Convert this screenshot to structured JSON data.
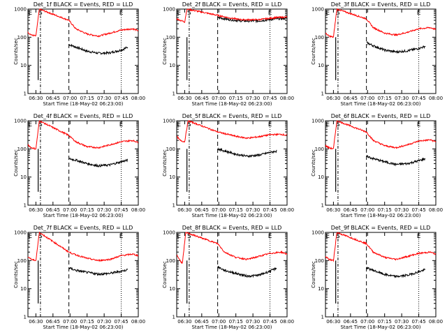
{
  "figure": {
    "x_tick_labels": [
      "06:30",
      "06:45",
      "07:00",
      "07:15",
      "07:30",
      "07:45",
      "08:00"
    ],
    "y_tick_labels": [
      "1",
      "10",
      "100",
      "1000"
    ],
    "ylabel": "Counts/sec",
    "xlabel": "Start Time (18-May-02 06:23:00)",
    "marker_labels": [
      "E",
      "S",
      "E"
    ],
    "line_colors": {
      "events": "#000000",
      "lld": "#ff0000"
    }
  },
  "chart_data": [
    {
      "type": "line",
      "title": "Det_1f BLACK = Events, RED = LLD",
      "yscale": "log",
      "ylim": [
        1,
        1000
      ],
      "xlim": [
        "06:23",
        "08:00"
      ],
      "series": [
        {
          "name": "Events",
          "color": "#000000",
          "points": [
            [
              "06:59",
              55
            ],
            [
              "07:05",
              45
            ],
            [
              "07:15",
              32
            ],
            [
              "07:25",
              27
            ],
            [
              "07:35",
              28
            ],
            [
              "07:45",
              35
            ],
            [
              "07:51",
              45
            ]
          ]
        },
        {
          "name": "LLD",
          "color": "#ff0000",
          "points": [
            [
              "06:23",
              150
            ],
            [
              "06:26",
              120
            ],
            [
              "06:30",
              110
            ],
            [
              "06:33",
              1000
            ],
            [
              "06:59",
              400
            ],
            [
              "07:05",
              200
            ],
            [
              "07:15",
              130
            ],
            [
              "07:25",
              110
            ],
            [
              "07:35",
              140
            ],
            [
              "07:45",
              180
            ],
            [
              "07:55",
              200
            ],
            [
              "08:00",
              170
            ]
          ]
        }
      ]
    },
    {
      "type": "line",
      "title": "Det_2f BLACK = Events, RED = LLD",
      "yscale": "log",
      "ylim": [
        1,
        1000
      ],
      "xlim": [
        "06:23",
        "08:00"
      ],
      "series": [
        {
          "name": "Events",
          "color": "#000000",
          "points": [
            [
              "06:59",
              500
            ],
            [
              "07:10",
              420
            ],
            [
              "07:20",
              380
            ],
            [
              "07:35",
              380
            ],
            [
              "07:50",
              450
            ],
            [
              "08:00",
              470
            ]
          ]
        },
        {
          "name": "LLD",
          "color": "#ff0000",
          "points": [
            [
              "06:23",
              450
            ],
            [
              "06:26",
              400
            ],
            [
              "06:30",
              350
            ],
            [
              "06:32",
              1000
            ],
            [
              "06:59",
              600
            ],
            [
              "07:10",
              480
            ],
            [
              "07:20",
              420
            ],
            [
              "07:35",
              420
            ],
            [
              "07:50",
              500
            ],
            [
              "08:00",
              520
            ]
          ]
        }
      ]
    },
    {
      "type": "line",
      "title": "Det_3f BLACK = Events, RED = LLD",
      "yscale": "log",
      "ylim": [
        1,
        1000
      ],
      "xlim": [
        "06:23",
        "08:00"
      ],
      "series": [
        {
          "name": "Events",
          "color": "#000000",
          "points": [
            [
              "06:59",
              65
            ],
            [
              "07:05",
              50
            ],
            [
              "07:15",
              35
            ],
            [
              "07:25",
              30
            ],
            [
              "07:35",
              33
            ],
            [
              "07:45",
              40
            ],
            [
              "07:51",
              48
            ]
          ]
        },
        {
          "name": "LLD",
          "color": "#ff0000",
          "points": [
            [
              "06:23",
              140
            ],
            [
              "06:26",
              110
            ],
            [
              "06:30",
              100
            ],
            [
              "06:33",
              1000
            ],
            [
              "06:59",
              450
            ],
            [
              "07:05",
              220
            ],
            [
              "07:15",
              140
            ],
            [
              "07:25",
              120
            ],
            [
              "07:35",
              150
            ],
            [
              "07:45",
              200
            ],
            [
              "07:55",
              220
            ],
            [
              "08:00",
              190
            ]
          ]
        }
      ]
    },
    {
      "type": "line",
      "title": "Det_4f BLACK = Events, RED = LLD",
      "yscale": "log",
      "ylim": [
        1,
        1000
      ],
      "xlim": [
        "06:23",
        "08:00"
      ],
      "series": [
        {
          "name": "Events",
          "color": "#000000",
          "points": [
            [
              "06:59",
              45
            ],
            [
              "07:05",
              40
            ],
            [
              "07:15",
              30
            ],
            [
              "07:25",
              25
            ],
            [
              "07:35",
              27
            ],
            [
              "07:45",
              35
            ],
            [
              "07:51",
              40
            ]
          ]
        },
        {
          "name": "LLD",
          "color": "#ff0000",
          "points": [
            [
              "06:23",
              140
            ],
            [
              "06:26",
              110
            ],
            [
              "06:30",
              100
            ],
            [
              "06:33",
              1000
            ],
            [
              "06:59",
              300
            ],
            [
              "07:05",
              180
            ],
            [
              "07:15",
              120
            ],
            [
              "07:25",
              110
            ],
            [
              "07:35",
              140
            ],
            [
              "07:45",
              180
            ],
            [
              "07:55",
              200
            ],
            [
              "08:00",
              170
            ]
          ]
        }
      ]
    },
    {
      "type": "line",
      "title": "Det_5f BLACK = Events, RED = LLD",
      "yscale": "log",
      "ylim": [
        1,
        1000
      ],
      "xlim": [
        "06:23",
        "08:00"
      ],
      "series": [
        {
          "name": "Events",
          "color": "#000000",
          "points": [
            [
              "06:59",
              100
            ],
            [
              "07:05",
              85
            ],
            [
              "07:15",
              65
            ],
            [
              "07:25",
              55
            ],
            [
              "07:35",
              60
            ],
            [
              "07:45",
              75
            ],
            [
              "07:51",
              85
            ]
          ]
        },
        {
          "name": "LLD",
          "color": "#ff0000",
          "points": [
            [
              "06:23",
              280
            ],
            [
              "06:26",
              200
            ],
            [
              "06:30",
              180
            ],
            [
              "06:33",
              1000
            ],
            [
              "06:59",
              400
            ],
            [
              "07:05",
              350
            ],
            [
              "07:15",
              280
            ],
            [
              "07:25",
              240
            ],
            [
              "07:35",
              270
            ],
            [
              "07:45",
              320
            ],
            [
              "07:55",
              330
            ],
            [
              "08:00",
              300
            ]
          ]
        }
      ]
    },
    {
      "type": "line",
      "title": "Det_6f BLACK = Events, RED = LLD",
      "yscale": "log",
      "ylim": [
        1,
        1000
      ],
      "xlim": [
        "06:23",
        "08:00"
      ],
      "series": [
        {
          "name": "Events",
          "color": "#000000",
          "points": [
            [
              "06:59",
              55
            ],
            [
              "07:05",
              45
            ],
            [
              "07:15",
              35
            ],
            [
              "07:25",
              28
            ],
            [
              "07:35",
              30
            ],
            [
              "07:45",
              38
            ],
            [
              "07:51",
              45
            ]
          ]
        },
        {
          "name": "LLD",
          "color": "#ff0000",
          "points": [
            [
              "06:23",
              130
            ],
            [
              "06:26",
              110
            ],
            [
              "06:30",
              100
            ],
            [
              "06:33",
              1000
            ],
            [
              "06:59",
              400
            ],
            [
              "07:05",
              200
            ],
            [
              "07:15",
              130
            ],
            [
              "07:25",
              110
            ],
            [
              "07:35",
              140
            ],
            [
              "07:45",
              190
            ],
            [
              "07:55",
              210
            ],
            [
              "08:00",
              180
            ]
          ]
        }
      ]
    },
    {
      "type": "line",
      "title": "Det_7f BLACK = Events, RED = LLD",
      "yscale": "log",
      "ylim": [
        1,
        1000
      ],
      "xlim": [
        "06:23",
        "08:00"
      ],
      "series": [
        {
          "name": "Events",
          "color": "#000000",
          "points": [
            [
              "06:59",
              55
            ],
            [
              "07:05",
              45
            ],
            [
              "07:15",
              38
            ],
            [
              "07:25",
              33
            ],
            [
              "07:35",
              35
            ],
            [
              "07:45",
              42
            ],
            [
              "07:51",
              48
            ]
          ]
        },
        {
          "name": "LLD",
          "color": "#ff0000",
          "points": [
            [
              "06:23",
              140
            ],
            [
              "06:26",
              110
            ],
            [
              "06:30",
              100
            ],
            [
              "06:33",
              1000
            ],
            [
              "06:59",
              200
            ],
            [
              "07:05",
              160
            ],
            [
              "07:15",
              120
            ],
            [
              "07:25",
              100
            ],
            [
              "07:35",
              110
            ],
            [
              "07:45",
              150
            ],
            [
              "07:55",
              170
            ],
            [
              "08:00",
              150
            ]
          ]
        }
      ]
    },
    {
      "type": "line",
      "title": "Det_8f BLACK = Events, RED = LLD",
      "yscale": "log",
      "ylim": [
        1,
        1000
      ],
      "xlim": [
        "06:23",
        "08:00"
      ],
      "series": [
        {
          "name": "Events",
          "color": "#000000",
          "points": [
            [
              "06:59",
              60
            ],
            [
              "07:05",
              45
            ],
            [
              "07:15",
              35
            ],
            [
              "07:25",
              28
            ],
            [
              "07:35",
              30
            ],
            [
              "07:45",
              42
            ],
            [
              "07:51",
              55
            ]
          ]
        },
        {
          "name": "LLD",
          "color": "#ff0000",
          "points": [
            [
              "06:23",
              160
            ],
            [
              "06:26",
              100
            ],
            [
              "06:28",
              80
            ],
            [
              "06:31",
              1000
            ],
            [
              "06:59",
              400
            ],
            [
              "07:05",
              200
            ],
            [
              "07:15",
              130
            ],
            [
              "07:25",
              110
            ],
            [
              "07:35",
              140
            ],
            [
              "07:45",
              180
            ],
            [
              "07:55",
              200
            ],
            [
              "08:00",
              170
            ]
          ]
        }
      ]
    },
    {
      "type": "line",
      "title": "Det_9f BLACK = Events, RED = LLD",
      "yscale": "log",
      "ylim": [
        1,
        1000
      ],
      "xlim": [
        "06:23",
        "08:00"
      ],
      "series": [
        {
          "name": "Events",
          "color": "#000000",
          "points": [
            [
              "06:59",
              55
            ],
            [
              "07:05",
              45
            ],
            [
              "07:15",
              32
            ],
            [
              "07:25",
              27
            ],
            [
              "07:35",
              30
            ],
            [
              "07:45",
              40
            ],
            [
              "07:51",
              48
            ]
          ]
        },
        {
          "name": "LLD",
          "color": "#ff0000",
          "points": [
            [
              "06:23",
              140
            ],
            [
              "06:26",
              110
            ],
            [
              "06:30",
              100
            ],
            [
              "06:33",
              1000
            ],
            [
              "06:59",
              400
            ],
            [
              "07:05",
              200
            ],
            [
              "07:15",
              130
            ],
            [
              "07:25",
              110
            ],
            [
              "07:35",
              140
            ],
            [
              "07:45",
              180
            ],
            [
              "07:55",
              200
            ],
            [
              "08:00",
              170
            ]
          ]
        }
      ]
    }
  ]
}
